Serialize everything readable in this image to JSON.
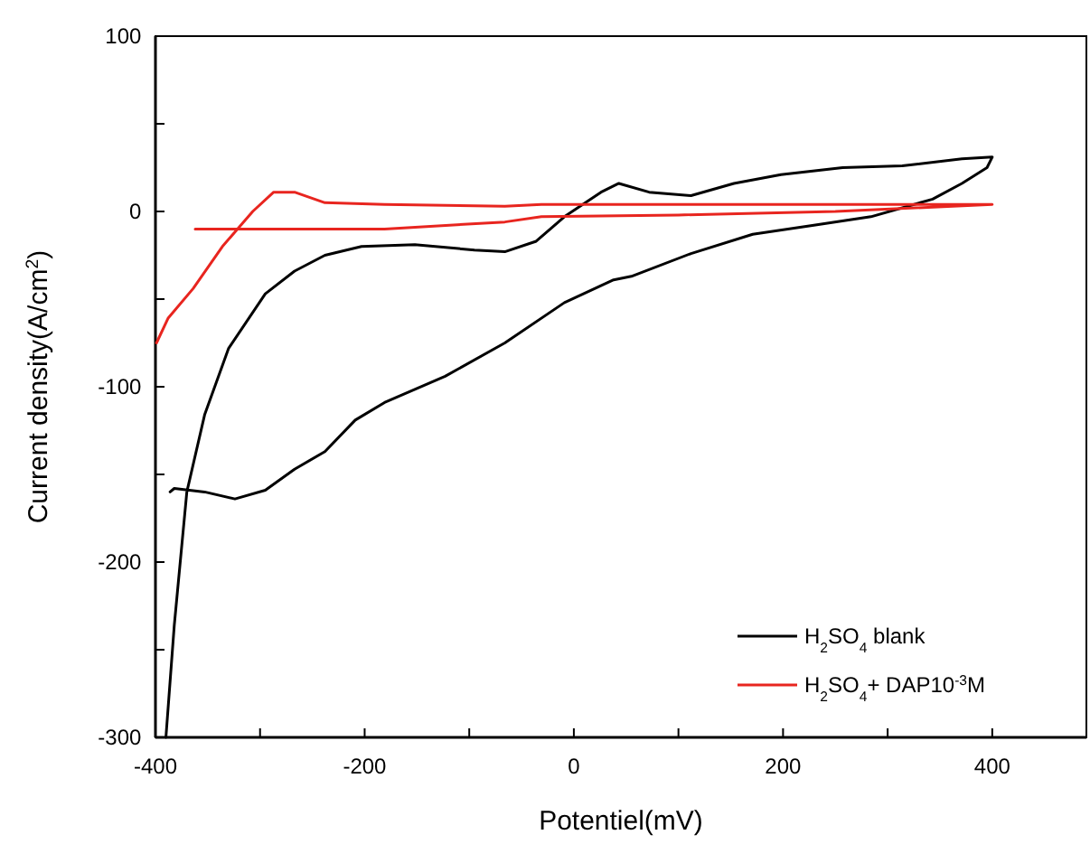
{
  "chart_data": {
    "type": "line",
    "xlabel": "Potentiel(mV)",
    "ylabel": "Current density(A/cm$^{2}$)",
    "xlim": [
      -400,
      490
    ],
    "ylim": [
      -300,
      100
    ],
    "xticks": [
      -400,
      {
        "value": -300,
        "label": null
      },
      -200,
      {
        "value": -100,
        "label": null
      },
      0,
      {
        "value": 100,
        "label": null
      },
      200,
      {
        "value": 300,
        "label": null
      },
      400
    ],
    "yticks": [
      -300,
      {
        "value": -250,
        "label": null
      },
      -200,
      {
        "value": -150,
        "label": null
      },
      -100,
      {
        "value": -50,
        "label": null
      },
      0,
      {
        "value": 50,
        "label": null
      },
      100
    ],
    "grid": false,
    "legend": "bottom right",
    "marker": "none",
    "line_style": "solid",
    "series": [
      {
        "name": "H$_{2}$SO$_{4}$ blank",
        "color": "#000000",
        "x": [
          -386,
          -382,
          -353,
          -324,
          -295,
          -267,
          -238,
          -209,
          -181,
          -123,
          -66,
          -9,
          38,
          55,
          112,
          171,
          228,
          284,
          343,
          371,
          395,
          400,
          371,
          314,
          257,
          198,
          153,
          112,
          72,
          43,
          26,
          -9,
          -36,
          -66,
          -95,
          -152,
          -203,
          -238,
          -267,
          -295,
          -330,
          -353,
          -370,
          -382,
          -390
        ],
        "values": [
          -160,
          -158,
          -160,
          -164,
          -159,
          -147,
          -137,
          -119,
          -109,
          -94,
          -75,
          -52,
          -39,
          -37,
          -24,
          -13,
          -8,
          -3,
          7,
          16,
          25,
          31,
          30,
          26,
          25,
          21,
          16,
          9,
          11,
          16,
          11,
          -3,
          -17,
          -23,
          -22,
          -19,
          -20,
          -25,
          -34,
          -47,
          -78,
          -116,
          -160,
          -236,
          -300
        ]
      },
      {
        "name": "H$_{2}$SO$_{4}$+ DAP10$^{-3}$M",
        "color": "#e8251f",
        "x": [
          -399,
          -388,
          -364,
          -336,
          -307,
          -287,
          -267,
          -238,
          -181,
          -66,
          -31,
          100,
          250,
          400,
          250,
          100,
          -31,
          -66,
          -181,
          -295,
          -362
        ],
        "values": [
          -75,
          -61,
          -44,
          -20,
          0,
          11,
          11,
          5,
          4,
          3,
          4,
          4,
          4,
          4,
          0,
          -2,
          -3,
          -6,
          -10,
          -10,
          -10
        ]
      }
    ]
  }
}
